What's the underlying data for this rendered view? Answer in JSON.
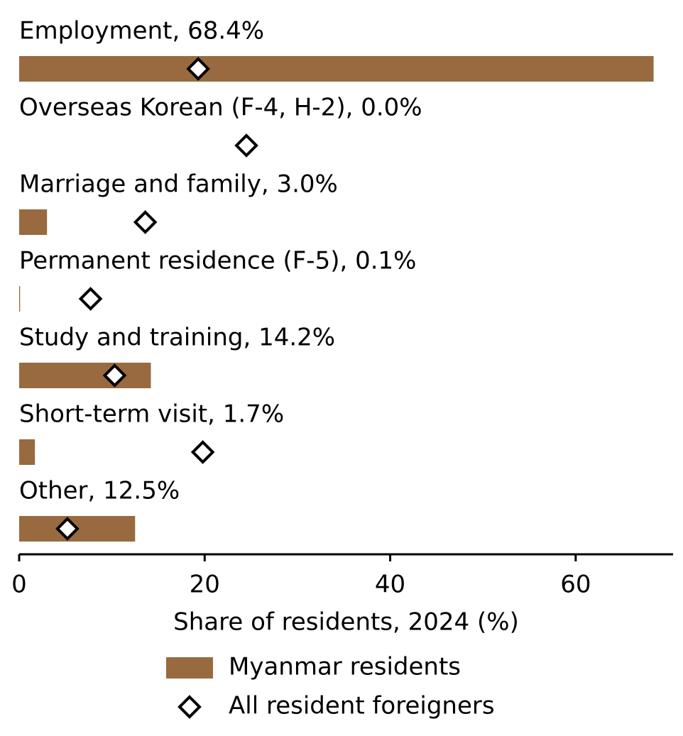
{
  "chart_data": {
    "type": "bar",
    "orientation": "horizontal",
    "categories": [
      "Employment, 68.4%",
      "Overseas Korean (F-4, H-2), 0.0%",
      "Marriage and family, 3.0%",
      "Permanent residence (F-5), 0.1%",
      "Study and training, 14.2%",
      "Short-term visit, 1.7%",
      "Other, 12.5%"
    ],
    "series": [
      {
        "name": "Myanmar residents",
        "color": "#996a3f",
        "marker": "bar",
        "values": [
          68.4,
          0.0,
          3.0,
          0.1,
          14.2,
          1.7,
          12.5
        ]
      },
      {
        "name": "All resident foreigners",
        "color": "#000000",
        "marker": "diamond",
        "values": [
          19.3,
          24.5,
          13.6,
          7.7,
          10.3,
          19.8,
          5.2
        ]
      }
    ],
    "xlabel": "Share of residents, 2024 (%)",
    "xlim": [
      0,
      70.5
    ],
    "xticks": [
      0,
      20,
      40,
      60
    ]
  }
}
